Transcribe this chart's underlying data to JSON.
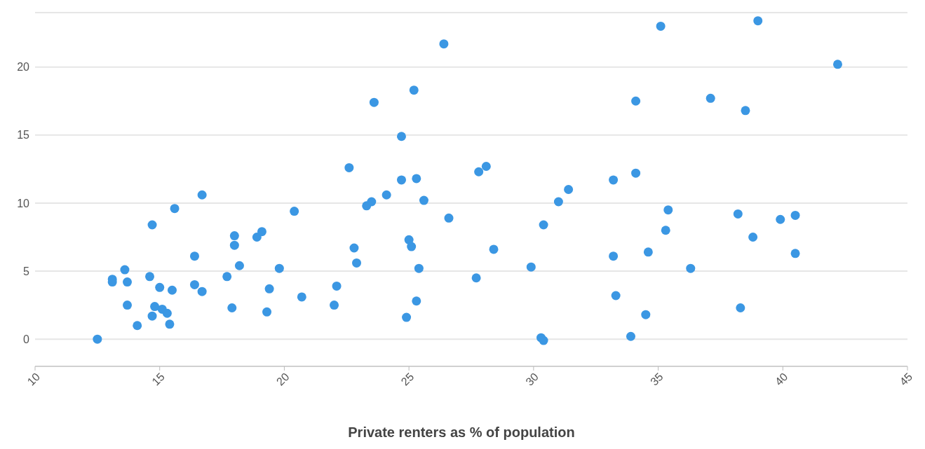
{
  "chart_data": {
    "type": "scatter",
    "xlabel": "Private renters as % of population",
    "x": [
      12.5,
      13.1,
      13.1,
      13.6,
      13.7,
      13.7,
      14.1,
      14.7,
      14.6,
      14.7,
      14.8,
      15.0,
      15.1,
      15.3,
      15.4,
      15.5,
      15.6,
      16.4,
      16.4,
      16.7,
      16.7,
      17.7,
      17.9,
      18.0,
      18.0,
      18.2,
      18.9,
      19.1,
      19.3,
      19.4,
      19.8,
      20.4,
      20.7,
      22.0,
      22.1,
      22.6,
      22.8,
      22.9,
      23.3,
      23.5,
      23.6,
      24.1,
      24.7,
      24.7,
      24.9,
      25.0,
      25.1,
      25.2,
      25.3,
      25.3,
      25.4,
      25.6,
      26.4,
      26.6,
      27.7,
      27.8,
      28.1,
      28.4,
      29.9,
      30.3,
      30.4,
      30.4,
      31.0,
      31.4,
      33.2,
      33.2,
      33.3,
      33.9,
      34.1,
      34.1,
      34.5,
      34.6,
      35.1,
      35.3,
      35.4,
      36.3,
      37.1,
      38.2,
      38.3,
      38.5,
      38.8,
      39.0,
      39.9,
      40.5,
      40.5,
      42.2
    ],
    "values": [
      0,
      4.4,
      4.2,
      5.1,
      4.2,
      2.5,
      1.0,
      8.4,
      4.6,
      1.7,
      2.4,
      3.8,
      2.2,
      1.9,
      1.1,
      3.6,
      9.6,
      6.1,
      4.0,
      10.6,
      3.5,
      4.6,
      2.3,
      7.6,
      6.9,
      5.4,
      7.5,
      7.9,
      2.0,
      3.7,
      5.2,
      9.4,
      3.1,
      2.5,
      3.9,
      12.6,
      6.7,
      5.6,
      9.8,
      10.1,
      17.4,
      10.6,
      11.7,
      14.9,
      1.6,
      7.3,
      6.8,
      18.3,
      11.8,
      2.8,
      5.2,
      10.2,
      21.7,
      8.9,
      4.5,
      12.3,
      12.7,
      6.6,
      5.3,
      0.1,
      -0.1,
      8.4,
      10.1,
      11.0,
      11.7,
      6.1,
      3.2,
      0.2,
      17.5,
      12.2,
      1.8,
      6.4,
      23.0,
      8.0,
      9.5,
      5.2,
      17.7,
      9.2,
      2.3,
      16.8,
      7.5,
      23.4,
      8.8,
      9.1,
      6.3,
      20.2
    ],
    "color": "#3b97e3",
    "marker": "circle",
    "xlim": [
      10,
      45
    ],
    "xticks": [
      10,
      15,
      20,
      25,
      30,
      35,
      40,
      45
    ],
    "ylim": [
      -2,
      24
    ],
    "yticks": [
      0,
      5,
      10,
      15,
      20
    ],
    "grid": "y"
  }
}
